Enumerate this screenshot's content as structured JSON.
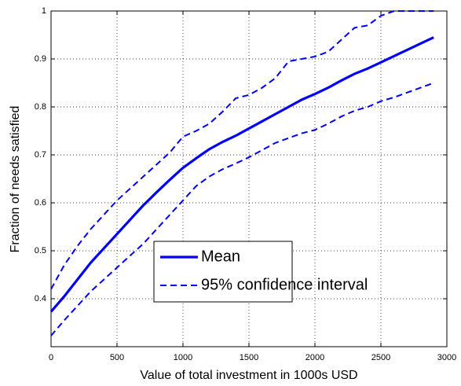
{
  "chart_data": {
    "type": "line",
    "xlabel": "Value of total investment in 1000s USD",
    "ylabel": "Fraction of needs satisfied",
    "x": [
      0,
      100,
      200,
      300,
      400,
      500,
      600,
      700,
      800,
      900,
      1000,
      1100,
      1200,
      1300,
      1400,
      1500,
      1600,
      1700,
      1800,
      1900,
      2000,
      2100,
      2200,
      2300,
      2400,
      2500,
      2600,
      2700,
      2800,
      2900
    ],
    "series": [
      {
        "name": "Mean",
        "color": "#0000ff",
        "style": "solid",
        "values": [
          0.373,
          0.405,
          0.44,
          0.475,
          0.505,
          0.535,
          0.565,
          0.595,
          0.622,
          0.648,
          0.673,
          0.693,
          0.712,
          0.727,
          0.74,
          0.755,
          0.77,
          0.785,
          0.8,
          0.815,
          0.827,
          0.84,
          0.855,
          0.869,
          0.88,
          0.893,
          0.906,
          0.919,
          0.932,
          0.945
        ]
      },
      {
        "name": "95% confidence interval",
        "color": "#0000ff",
        "style": "dashed",
        "upper": [
          0.42,
          0.47,
          0.51,
          0.545,
          0.575,
          0.605,
          0.63,
          0.655,
          0.68,
          0.705,
          0.738,
          0.75,
          0.765,
          0.79,
          0.818,
          0.825,
          0.84,
          0.86,
          0.895,
          0.9,
          0.905,
          0.915,
          0.94,
          0.965,
          0.97,
          0.99,
          1,
          1,
          1,
          1
        ],
        "lower": [
          0.323,
          0.355,
          0.385,
          0.415,
          0.44,
          0.465,
          0.49,
          0.515,
          0.545,
          0.575,
          0.605,
          0.635,
          0.655,
          0.67,
          0.682,
          0.695,
          0.71,
          0.725,
          0.735,
          0.745,
          0.752,
          0.765,
          0.78,
          0.792,
          0.8,
          0.812,
          0.82,
          0.83,
          0.84,
          0.85
        ]
      }
    ],
    "xlim": [
      0,
      3000
    ],
    "xticks": [
      0,
      500,
      1000,
      1500,
      2000,
      2500,
      3000
    ],
    "ylim": [
      0.3,
      1
    ],
    "yticks": [
      0.4,
      0.5,
      0.6,
      0.7,
      0.8,
      0.9,
      1
    ],
    "grid": true,
    "legend": "lower right"
  }
}
